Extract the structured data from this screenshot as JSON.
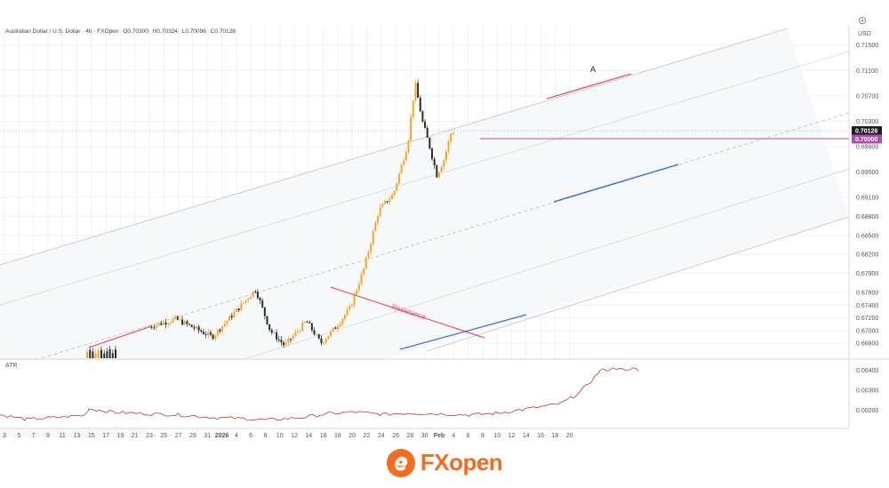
{
  "header": {
    "symbol": "Australian Dollar / U.S. Dollar · 4h · FXOpen",
    "open": "O0.70300",
    "high": "H0.70324",
    "low": "L0.70096",
    "close": "C0.70128"
  },
  "price_axis": {
    "currency": "USD",
    "current_price": "0.70128",
    "level_label": "0.70000",
    "ticks": [
      "0.71500",
      "0.71100",
      "0.70700",
      "0.70300",
      "0.69900",
      "0.69500",
      "0.69100",
      "0.68800",
      "0.68500",
      "0.68200",
      "0.67900",
      "0.67600",
      "0.67400",
      "0.67200",
      "0.67000",
      "0.66800"
    ]
  },
  "atr_panel": {
    "title": "ATR",
    "ticks": [
      "0.00400",
      "0.00300",
      "0.00200"
    ]
  },
  "time_axis": {
    "ticks": [
      "3",
      "5",
      "7",
      "9",
      "11",
      "13",
      "15",
      "17",
      "19",
      "21",
      "23",
      "25",
      "27",
      "29",
      "31",
      "2026",
      "4",
      "6",
      "8",
      "10",
      "12",
      "14",
      "16",
      "18",
      "20",
      "22",
      "24",
      "26",
      "28",
      "30",
      "Feb",
      "4",
      "6",
      "8",
      "10",
      "12",
      "14",
      "16",
      "18",
      "20"
    ]
  },
  "annotations": {
    "point_a": "A",
    "resistance": "Resistance"
  },
  "colors": {
    "up": "#f5a623",
    "down": "#2b2b2b",
    "resistance": "#e8566c",
    "support": "#3a6fd8",
    "level": "#b848b8",
    "channel": "#c8c8c8",
    "brand": "#f36c21"
  },
  "brand": {
    "logo_icon": "fxopen-lion-icon",
    "name_fx": "FX",
    "name_open": "open"
  },
  "chart_data": {
    "type": "candlestick",
    "series": [
      {
        "name": "Australian Dollar / U.S. Dollar",
        "ohlc": "4h"
      }
    ],
    "anchors": [
      {
        "date": "2025-12-23",
        "price": 0.6705
      },
      {
        "date": "2025-12-27",
        "price": 0.6718
      },
      {
        "date": "2026-01-01",
        "price": 0.669
      },
      {
        "date": "2026-01-07",
        "price": 0.6765
      },
      {
        "date": "2026-01-09",
        "price": 0.67
      },
      {
        "date": "2026-01-11",
        "price": 0.6676
      },
      {
        "date": "2026-01-14",
        "price": 0.6715
      },
      {
        "date": "2026-01-16",
        "price": 0.668
      },
      {
        "date": "2026-01-18",
        "price": 0.6705
      },
      {
        "date": "2026-01-20",
        "price": 0.6735
      },
      {
        "date": "2026-01-22",
        "price": 0.68
      },
      {
        "date": "2026-01-24",
        "price": 0.689
      },
      {
        "date": "2026-01-26",
        "price": 0.6915
      },
      {
        "date": "2026-01-28",
        "price": 0.6995
      },
      {
        "date": "2026-01-29",
        "price": 0.709
      },
      {
        "date": "2026-01-30",
        "price": 0.703
      },
      {
        "date": "2026-01-31",
        "price": 0.699
      },
      {
        "date": "2026-02-01",
        "price": 0.6945
      },
      {
        "date": "2026-02-02",
        "price": 0.697
      },
      {
        "date": "2026-02-03",
        "price": 0.7013
      }
    ],
    "current_price": 0.70128,
    "horizontal_level": 0.7,
    "ylim": [
      0.6655,
      0.7165
    ],
    "atr_ylim": [
      0.0011,
      0.0045
    ]
  }
}
